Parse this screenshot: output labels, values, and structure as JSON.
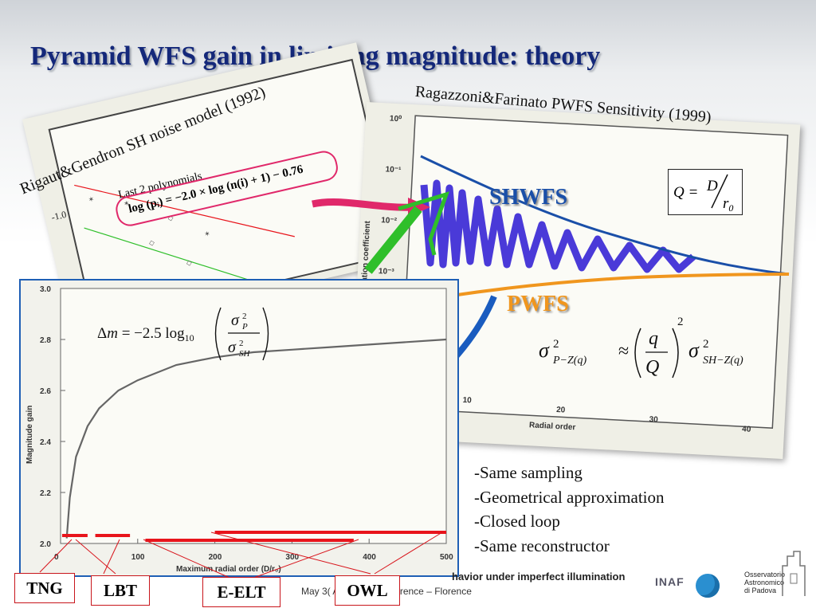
{
  "title": "Pyramid WFS gain in limiting magnitude: theory",
  "left_panel": {
    "caption": "Rigaut&Gendron SH noise model (1992)",
    "note": "Last 2 polynomials",
    "formula": "log (pᵢ) = −2.0 × log (n(i) + 1) − 0.76",
    "tick": "-1.0"
  },
  "right_panel": {
    "caption": "Ragazzoni&Farinato PWFS Sensitivity (1999)",
    "label_sh": "SHWFS",
    "label_pwfs": "PWFS",
    "q_formula": "Q = D / r₀",
    "sigma_formula": "σ²P−Z(q) ≈ (q/Q)² σ²SH−Z(q)",
    "y_ticks": [
      "10⁰",
      "10⁻¹",
      "10⁻²",
      "10⁻³"
    ],
    "x_ticks": [
      "10",
      "20",
      "30",
      "40"
    ],
    "y_axis_label": "Propagation coefficient",
    "x_axis_label": "Radial order"
  },
  "main_chart": {
    "formula": "Δm = −2.5 log₁₀ (σ²P / σ²SH)",
    "chart_data": {
      "type": "line",
      "ylabel": "Magnitude gain",
      "xlabel": "Maximum radial order (D/r₀)",
      "xlim": [
        0,
        500
      ],
      "ylim": [
        2.0,
        3.0
      ],
      "x_ticks": [
        "0",
        "100",
        "200",
        "300",
        "400",
        "500"
      ],
      "y_ticks": [
        "2.0",
        "2.2",
        "2.4",
        "2.6",
        "2.8",
        "3.0"
      ],
      "x": [
        8,
        12,
        20,
        35,
        50,
        75,
        100,
        150,
        200,
        250,
        300,
        350,
        400,
        450,
        500
      ],
      "values": [
        2.02,
        2.18,
        2.34,
        2.46,
        2.53,
        2.6,
        2.64,
        2.7,
        2.73,
        2.75,
        2.76,
        2.77,
        2.78,
        2.79,
        2.8
      ],
      "ranges": [
        {
          "name": "TNG",
          "x": [
            2,
            35
          ]
        },
        {
          "name": "LBT",
          "x": [
            45,
            90
          ]
        },
        {
          "name": "E-ELT",
          "x": [
            110,
            380
          ]
        },
        {
          "name": "OWL",
          "x": [
            200,
            500
          ]
        }
      ]
    }
  },
  "bullets": [
    "-Same sampling",
    "-Geometrical approximation",
    "-Closed loop",
    "-Same reconstructor"
  ],
  "telescopes": [
    "TNG",
    "LBT",
    "E-ELT",
    "OWL"
  ],
  "footer": {
    "banner": "havior under imperfect illumination",
    "conference": "May 3(   AO4ELT2 conference – Florence",
    "inaf": "INAF",
    "obs": [
      "Osservatorio",
      "Astronomico",
      "di Padova"
    ]
  },
  "colors": {
    "title": "#14287a",
    "red": "#e8141b",
    "blue": "#1a4fa8",
    "orange": "#f0961e",
    "violet": "#4a3ad8",
    "green": "#2fbf2a",
    "pink": "#e0286a"
  }
}
